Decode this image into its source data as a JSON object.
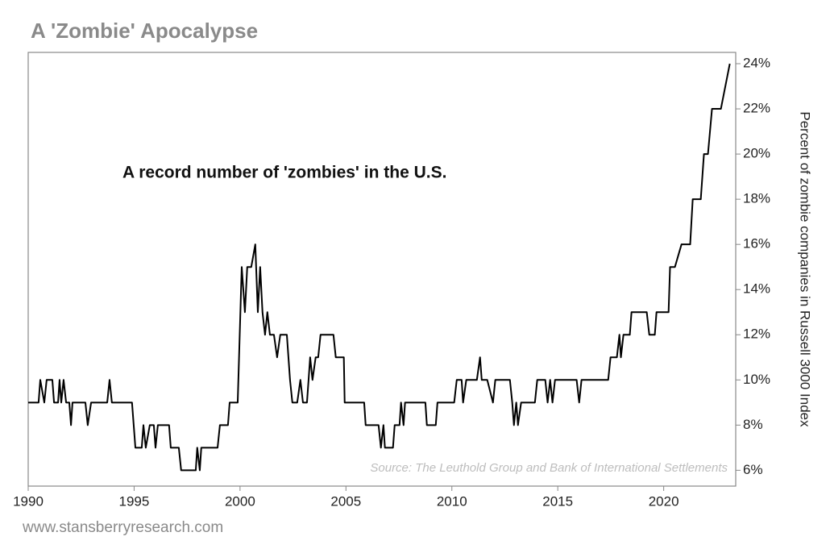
{
  "chart_data": {
    "type": "line",
    "title": "A 'Zombie' Apocalypse",
    "annotation": "A record number of 'zombies' in the U.S.",
    "source": "Source: The Leuthold Group and Bank of International Settlements",
    "y_label": "Percent of zombie companies in Russell 3000 Index",
    "footer": "www.stansberryresearch.com",
    "color": "#000000",
    "xlim": [
      1990,
      2023.4
    ],
    "xticks": [
      1990,
      1995,
      2000,
      2005,
      2010,
      2015,
      2020
    ],
    "ylim": [
      5.3,
      24.5
    ],
    "yticks": [
      {
        "value": 6,
        "label": "6%"
      },
      {
        "value": 8,
        "label": "8%"
      },
      {
        "value": 10,
        "label": "10%"
      },
      {
        "value": 12,
        "label": "12%"
      },
      {
        "value": 14,
        "label": "14%"
      },
      {
        "value": 16,
        "label": "16%"
      },
      {
        "value": 18,
        "label": "18%"
      },
      {
        "value": 20,
        "label": "20%"
      },
      {
        "value": 22,
        "label": "22%"
      },
      {
        "value": 24,
        "label": "24%"
      }
    ],
    "x": [
      1990.0,
      1990.49,
      1990.57,
      1990.76,
      1990.87,
      1991.14,
      1991.22,
      1991.41,
      1991.48,
      1991.56,
      1991.67,
      1991.79,
      1991.94,
      1992.02,
      1992.09,
      1992.7,
      1992.81,
      1992.97,
      1993.73,
      1993.84,
      1993.95,
      1994.9,
      1994.98,
      1995.06,
      1995.36,
      1995.44,
      1995.55,
      1995.74,
      1995.93,
      1996.01,
      1996.12,
      1996.65,
      1996.73,
      1997.11,
      1997.22,
      1997.91,
      1997.98,
      1998.1,
      1998.17,
      1998.94,
      1999.05,
      1999.43,
      1999.51,
      1999.89,
      2000.08,
      2000.23,
      2000.34,
      2000.53,
      2000.72,
      2000.84,
      2000.95,
      2001.06,
      2001.18,
      2001.29,
      2001.41,
      2001.6,
      2001.75,
      2001.9,
      2002.21,
      2002.36,
      2002.47,
      2002.7,
      2002.85,
      2002.97,
      2003.16,
      2003.31,
      2003.42,
      2003.57,
      2003.69,
      2003.8,
      2004.41,
      2004.52,
      2004.9,
      2004.94,
      2005.86,
      2005.93,
      2006.54,
      2006.65,
      2006.77,
      2006.84,
      2007.22,
      2007.3,
      2007.53,
      2007.6,
      2007.72,
      2007.79,
      2008.75,
      2008.82,
      2009.24,
      2009.32,
      2010.11,
      2010.23,
      2010.46,
      2010.53,
      2010.68,
      2011.18,
      2011.33,
      2011.41,
      2011.67,
      2011.94,
      2012.05,
      2012.74,
      2012.85,
      2012.93,
      2013.04,
      2013.12,
      2013.27,
      2013.92,
      2014.03,
      2014.41,
      2014.52,
      2014.64,
      2014.75,
      2014.87,
      2015.89,
      2016.01,
      2016.12,
      2017.38,
      2017.49,
      2017.79,
      2017.91,
      2017.98,
      2018.1,
      2018.4,
      2018.48,
      2019.2,
      2019.32,
      2019.58,
      2019.66,
      2020.23,
      2020.3,
      2020.53,
      2020.84,
      2021.25,
      2021.37,
      2021.75,
      2021.9,
      2022.09,
      2022.28,
      2022.7,
      2023.12
    ],
    "values": [
      9,
      9,
      10,
      9,
      10,
      10,
      9,
      9,
      10,
      9,
      10,
      9,
      9,
      8,
      9,
      9,
      8,
      9,
      9,
      10,
      9,
      9,
      8,
      7,
      7,
      8,
      7,
      8,
      8,
      7,
      8,
      8,
      7,
      7,
      6,
      6,
      7,
      6,
      7,
      7,
      8,
      8,
      9,
      9,
      15,
      13,
      15,
      15,
      16,
      13,
      15,
      13,
      12,
      13,
      12,
      12,
      11,
      12,
      12,
      10,
      9,
      9,
      10,
      9,
      9,
      11,
      10,
      11,
      11,
      12,
      12,
      11,
      11,
      9,
      9,
      8,
      8,
      7,
      8,
      7,
      7,
      8,
      8,
      9,
      8,
      9,
      9,
      8,
      8,
      9,
      9,
      10,
      10,
      9,
      10,
      10,
      11,
      10,
      10,
      9,
      10,
      10,
      9,
      8,
      9,
      8,
      9,
      9,
      10,
      10,
      9,
      10,
      9,
      10,
      10,
      9,
      10,
      10,
      11,
      11,
      12,
      11,
      12,
      12,
      13,
      13,
      12,
      12,
      13,
      13,
      15,
      15,
      16,
      16,
      18,
      18,
      20,
      20,
      22,
      22,
      24
    ]
  }
}
